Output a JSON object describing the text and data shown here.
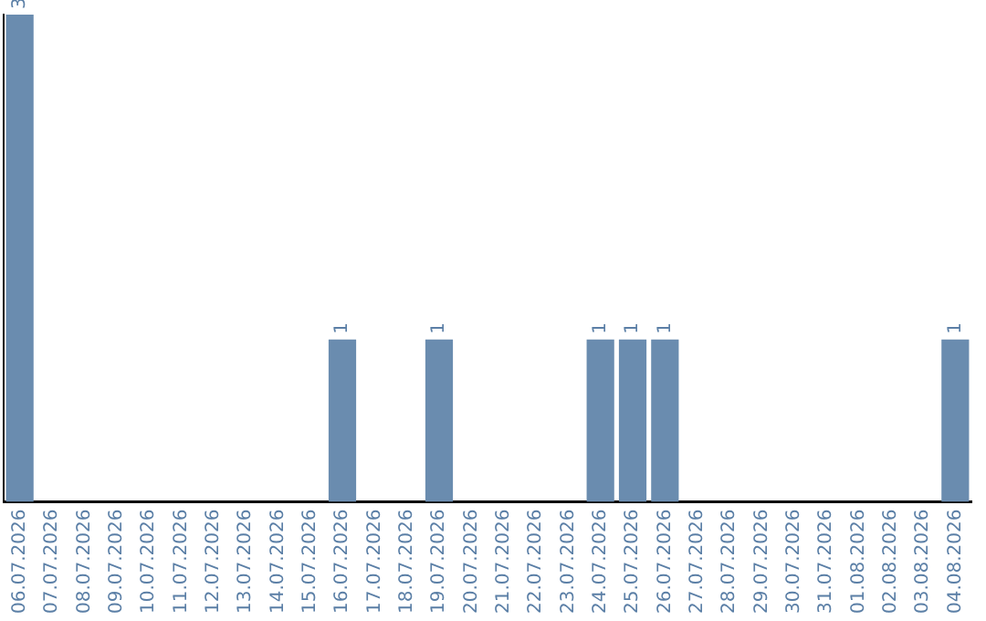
{
  "chart_data": {
    "type": "bar",
    "categories": [
      "06.07.2026",
      "07.07.2026",
      "08.07.2026",
      "09.07.2026",
      "10.07.2026",
      "11.07.2026",
      "12.07.2026",
      "13.07.2026",
      "14.07.2026",
      "15.07.2026",
      "16.07.2026",
      "17.07.2026",
      "18.07.2026",
      "19.07.2026",
      "20.07.2026",
      "21.07.2026",
      "22.07.2026",
      "23.07.2026",
      "24.07.2026",
      "25.07.2026",
      "26.07.2026",
      "27.07.2026",
      "28.07.2026",
      "29.07.2026",
      "30.07.2026",
      "31.07.2026",
      "01.08.2026",
      "02.08.2026",
      "03.08.2026",
      "04.08.2026"
    ],
    "values": [
      3,
      0,
      0,
      0,
      0,
      0,
      0,
      0,
      0,
      0,
      1,
      0,
      0,
      1,
      0,
      0,
      0,
      0,
      1,
      1,
      1,
      0,
      0,
      0,
      0,
      0,
      0,
      0,
      0,
      1
    ],
    "value_labels": [
      "3",
      null,
      null,
      null,
      null,
      null,
      null,
      null,
      null,
      null,
      "1",
      null,
      null,
      "1",
      null,
      null,
      null,
      null,
      "1",
      "1",
      "1",
      null,
      null,
      null,
      null,
      null,
      null,
      null,
      null,
      "1"
    ],
    "color": "#6a8caf",
    "tick_labels": "x",
    "grid": false,
    "legend": false
  }
}
